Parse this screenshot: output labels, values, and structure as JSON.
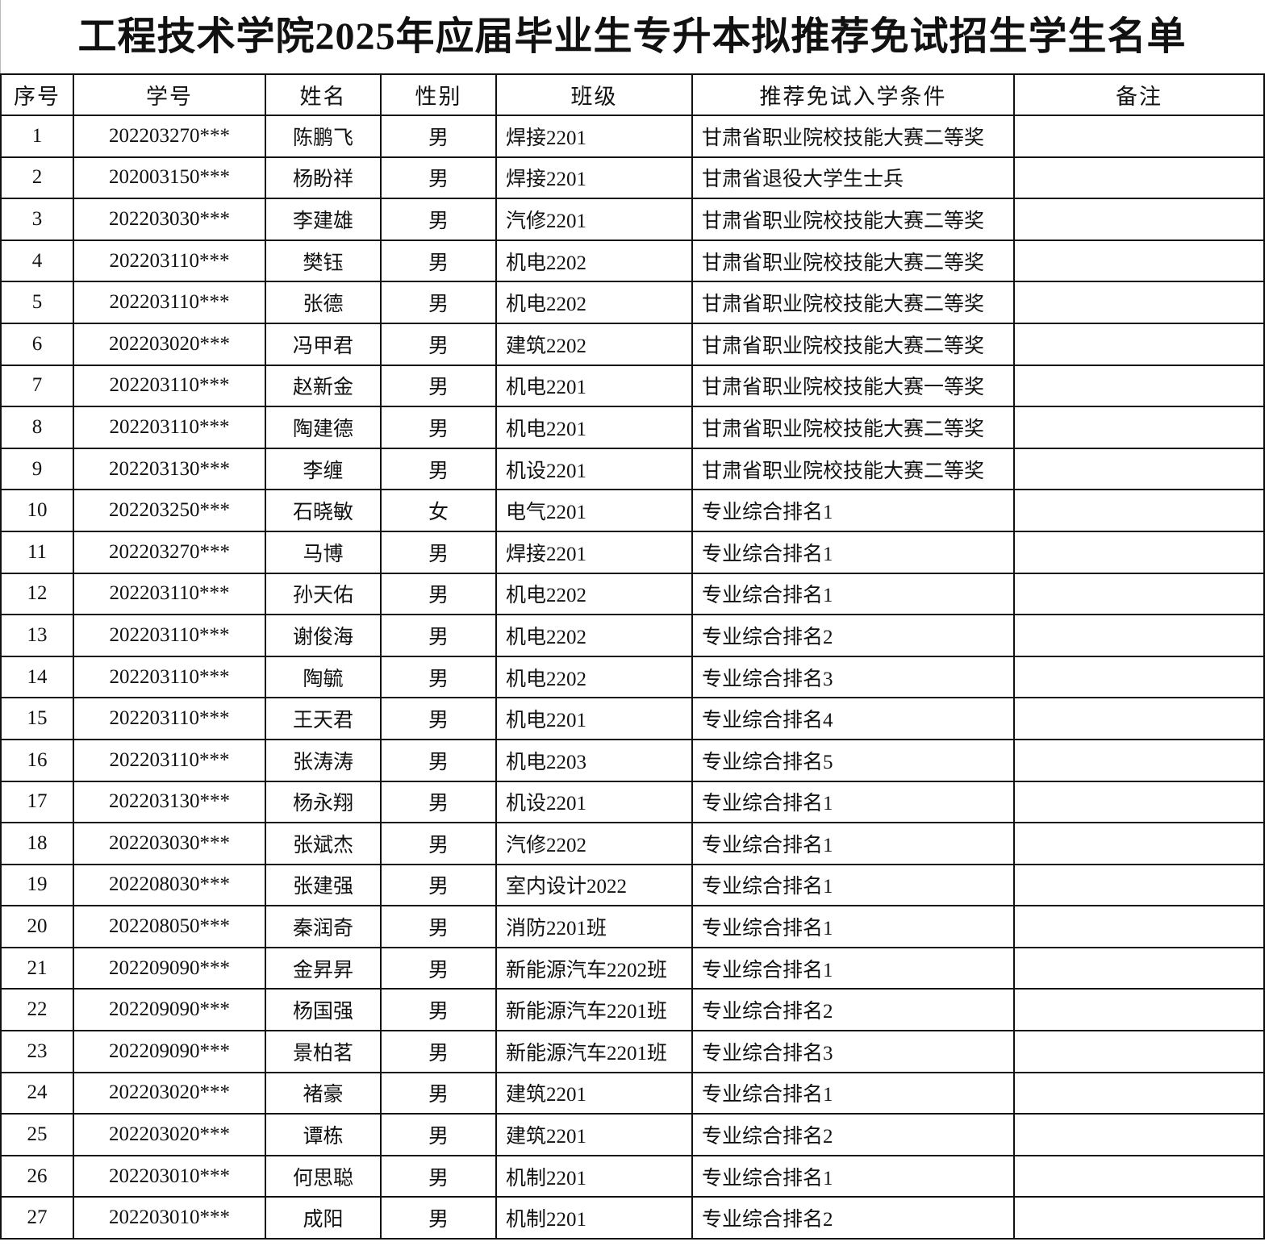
{
  "header": {
    "title": "工程技术学院2025年应届毕业生专升本拟推荐免试招生学生名单"
  },
  "table": {
    "columns": [
      "序号",
      "学号",
      "姓名",
      "性别",
      "班级",
      "推荐免试入学条件",
      "备注"
    ],
    "rows": [
      [
        "1",
        "202203270***",
        "陈鹏飞",
        "男",
        "焊接2201",
        "甘肃省职业院校技能大赛二等奖"
      ],
      [
        "2",
        "202003150***",
        "杨盼祥",
        "男",
        "焊接2201",
        "甘肃省退役大学生士兵"
      ],
      [
        "3",
        "202203030***",
        "李建雄",
        "男",
        "汽修2201",
        "甘肃省职业院校技能大赛二等奖"
      ],
      [
        "4",
        "202203110***",
        "樊钰",
        "男",
        "机电2202",
        "甘肃省职业院校技能大赛二等奖"
      ],
      [
        "5",
        "202203110***",
        "张德",
        "男",
        "机电2202",
        "甘肃省职业院校技能大赛二等奖"
      ],
      [
        "6",
        "202203020***",
        "冯甲君",
        "男",
        "建筑2202",
        "甘肃省职业院校技能大赛二等奖"
      ],
      [
        "7",
        "202203110***",
        "赵新金",
        "男",
        "机电2201",
        "甘肃省职业院校技能大赛一等奖"
      ],
      [
        "8",
        "202203110***",
        "陶建德",
        "男",
        "机电2201",
        "甘肃省职业院校技能大赛二等奖"
      ],
      [
        "9",
        "202203130***",
        "李缠",
        "男",
        "机设2201",
        "甘肃省职业院校技能大赛二等奖"
      ],
      [
        "10",
        "202203250***",
        "石晓敏",
        "女",
        "电气2201",
        "专业综合排名1"
      ],
      [
        "11",
        "202203270***",
        "马博",
        "男",
        "焊接2201",
        "专业综合排名1"
      ],
      [
        "12",
        "202203110***",
        "孙天佑",
        "男",
        "机电2202",
        "专业综合排名1"
      ],
      [
        "13",
        "202203110***",
        "谢俊海",
        "男",
        "机电2202",
        "专业综合排名2"
      ],
      [
        "14",
        "202203110***",
        "陶毓",
        "男",
        "机电2202",
        "专业综合排名3"
      ],
      [
        "15",
        "202203110***",
        "王天君",
        "男",
        "机电2201",
        "专业综合排名4"
      ],
      [
        "16",
        "202203110***",
        "张涛涛",
        "男",
        "机电2203",
        "专业综合排名5"
      ],
      [
        "17",
        "202203130***",
        "杨永翔",
        "男",
        "机设2201",
        "专业综合排名1"
      ],
      [
        "18",
        "202203030***",
        "张斌杰",
        "男",
        "汽修2202",
        "专业综合排名1"
      ],
      [
        "19",
        "202208030***",
        "张建强",
        "男",
        "室内设计2022",
        "专业综合排名1"
      ],
      [
        "20",
        "202208050***",
        "秦润奇",
        "男",
        "消防2201班",
        "专业综合排名1"
      ],
      [
        "21",
        "202209090***",
        "金昇昇",
        "男",
        "新能源汽车2202班",
        "专业综合排名1"
      ],
      [
        "22",
        "202209090***",
        "杨国强",
        "男",
        "新能源汽车2201班",
        "专业综合排名2"
      ],
      [
        "23",
        "202209090***",
        "景柏茗",
        "男",
        "新能源汽车2201班",
        "专业综合排名3"
      ],
      [
        "24",
        "202203020***",
        "褚豪",
        "男",
        "建筑2201",
        "专业综合排名1"
      ],
      [
        "25",
        "202203020***",
        "谭栋",
        "男",
        "建筑2201",
        "专业综合排名2"
      ],
      [
        "26",
        "202203010***",
        "何思聪",
        "男",
        "机制2201",
        "专业综合排名1"
      ],
      [
        "27",
        "202203010***",
        "成阳",
        "男",
        "机制2201",
        "专业综合排名2"
      ]
    ]
  }
}
